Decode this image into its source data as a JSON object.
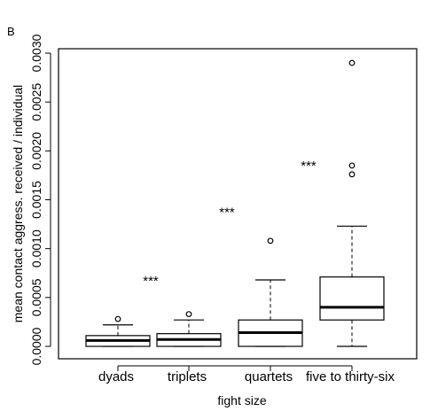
{
  "chart_data": {
    "type": "boxplot",
    "panel_label": "B",
    "xlabel": "fight size",
    "ylabel": "mean contact aggress. received / individual",
    "ylim": [
      -0.0001,
      0.0031
    ],
    "yticks": [
      0.0,
      0.0005,
      0.001,
      0.0015,
      0.002,
      0.0025,
      0.003
    ],
    "ytick_labels": [
      "0.0000",
      "0.0005",
      "0.0010",
      "0.0015",
      "0.0020",
      "0.0025",
      "0.0030"
    ],
    "categories": [
      "dyads",
      "triplets",
      "quartets",
      "five to thirty-six"
    ],
    "boxes": [
      {
        "whisker_low": 0.0,
        "q1": 0.0,
        "median": 6e-05,
        "q3": 0.00011,
        "whisker_high": 0.00022,
        "outliers": [
          0.00028
        ]
      },
      {
        "whisker_low": 0.0,
        "q1": 0.0,
        "median": 7e-05,
        "q3": 0.00013,
        "whisker_high": 0.00027,
        "outliers": [
          0.00033
        ]
      },
      {
        "whisker_low": 0.0,
        "q1": 0.0,
        "median": 0.00014,
        "q3": 0.00027,
        "whisker_high": 0.00068,
        "outliers": [
          0.00108
        ]
      },
      {
        "whisker_low": 0.0,
        "q1": 0.00027,
        "median": 0.0004,
        "q3": 0.00071,
        "whisker_high": 0.00123,
        "outliers": [
          0.00176,
          0.00185,
          0.0029
        ]
      }
    ],
    "annotations": [
      {
        "text": "***",
        "x": 1.5,
        "y": 0.00068
      },
      {
        "text": "***",
        "x": 2.5,
        "y": 0.00138
      },
      {
        "text": "***",
        "x": 3.5,
        "y": 0.00186
      }
    ],
    "grid": false,
    "legend": "none"
  }
}
